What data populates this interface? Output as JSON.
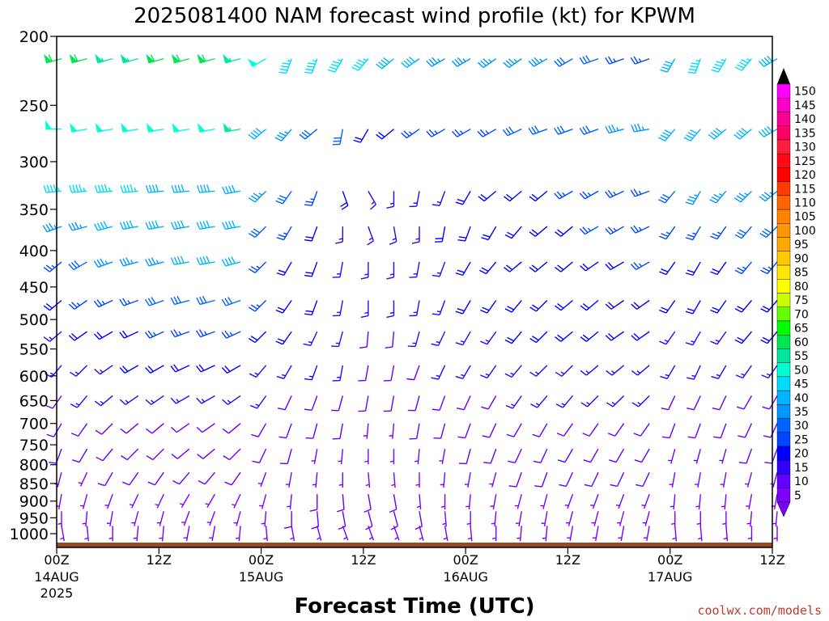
{
  "chart_data": {
    "type": "wind-barb profile",
    "title": "2025081400 NAM forecast wind profile (kt) for KPWM",
    "xlabel": "Forecast Time (UTC)",
    "credit": "coolwx.com/models",
    "x_ticks": [
      {
        "hour": 0,
        "label": "00Z",
        "date": "14AUG",
        "year": "2025"
      },
      {
        "hour": 12,
        "label": "12Z",
        "date": "",
        "year": ""
      },
      {
        "hour": 24,
        "label": "00Z",
        "date": "15AUG",
        "year": ""
      },
      {
        "hour": 36,
        "label": "12Z",
        "date": "",
        "year": ""
      },
      {
        "hour": 48,
        "label": "00Z",
        "date": "16AUG",
        "year": ""
      },
      {
        "hour": 60,
        "label": "12Z",
        "date": "",
        "year": ""
      },
      {
        "hour": 72,
        "label": "00Z",
        "date": "17AUG",
        "year": ""
      },
      {
        "hour": 84,
        "label": "12Z",
        "date": "",
        "year": ""
      }
    ],
    "xlim": [
      0,
      84
    ],
    "ylabel": "",
    "y_ticks": [
      200,
      250,
      300,
      350,
      400,
      450,
      500,
      550,
      600,
      650,
      700,
      750,
      800,
      850,
      900,
      950,
      1000
    ],
    "ylim": [
      200,
      1000
    ],
    "y_scale": "log-pressure (inverted)",
    "colorbar": {
      "labels": [
        "150",
        "145",
        "140",
        "135",
        "130",
        "125",
        "120",
        "115",
        "110",
        "105",
        "100",
        "95",
        "90",
        "85",
        "80",
        "75",
        "70",
        "65",
        "60",
        "55",
        "50",
        "45",
        "40",
        "35",
        "30",
        "25",
        "20",
        "15",
        "10",
        "5"
      ],
      "colors": [
        "#ff00ff",
        "#ff00c8",
        "#ff0096",
        "#ff0064",
        "#ff1e3c",
        "#ff0a14",
        "#ff0000",
        "#ff3c00",
        "#ff6400",
        "#ff8200",
        "#ff9600",
        "#ffaa00",
        "#ffc800",
        "#ffe600",
        "#ffff00",
        "#c8ff00",
        "#64ff00",
        "#00ff00",
        "#00e650",
        "#00e6a0",
        "#00ffd2",
        "#00dcff",
        "#00b4ff",
        "#0096ff",
        "#0064ff",
        "#0046ff",
        "#0000ff",
        "#3200ff",
        "#6400ff",
        "#7d00ff"
      ]
    },
    "surface_color": "#9a4a23",
    "surface_pressure_hPa": [
      1015,
      1016,
      1017,
      1018,
      1018,
      1019,
      1019,
      1020,
      1020,
      1020,
      1020,
      1020
    ],
    "hours": [
      0,
      3,
      6,
      9,
      12,
      15,
      18,
      21,
      24,
      27,
      30,
      33,
      36,
      39,
      42,
      45,
      48,
      51,
      54,
      57,
      60,
      63,
      66,
      69,
      72,
      75,
      78,
      81,
      84
    ],
    "series": [
      {
        "level": 215,
        "direction_deg": [
          255,
          255,
          255,
          255,
          255,
          255,
          255,
          255,
          240,
          200,
          200,
          210,
          220,
          230,
          235,
          240,
          240,
          235,
          235,
          240,
          240,
          250,
          250,
          250,
          210,
          200,
          210,
          220,
          240
        ],
        "speed_kt": [
          60,
          60,
          55,
          55,
          60,
          60,
          60,
          55,
          50,
          45,
          45,
          45,
          45,
          40,
          40,
          35,
          35,
          35,
          35,
          35,
          30,
          30,
          25,
          25,
          40,
          45,
          45,
          45,
          40
        ]
      },
      {
        "level": 270,
        "direction_deg": [
          270,
          260,
          260,
          260,
          260,
          260,
          260,
          260,
          230,
          220,
          230,
          190,
          210,
          230,
          235,
          240,
          240,
          240,
          245,
          250,
          250,
          250,
          255,
          260,
          220,
          220,
          230,
          230,
          240
        ],
        "speed_kt": [
          50,
          50,
          50,
          50,
          50,
          50,
          50,
          55,
          40,
          35,
          30,
          30,
          20,
          20,
          25,
          25,
          25,
          25,
          30,
          30,
          30,
          30,
          35,
          35,
          40,
          40,
          40,
          40,
          40
        ]
      },
      {
        "level": 330,
        "direction_deg": [
          265,
          265,
          265,
          265,
          265,
          265,
          265,
          260,
          225,
          215,
          200,
          160,
          150,
          180,
          190,
          200,
          210,
          230,
          230,
          230,
          240,
          240,
          245,
          250,
          220,
          210,
          220,
          225,
          230
        ],
        "speed_kt": [
          45,
          45,
          45,
          45,
          40,
          40,
          40,
          40,
          35,
          30,
          25,
          20,
          15,
          15,
          15,
          15,
          20,
          20,
          20,
          20,
          25,
          25,
          25,
          25,
          30,
          35,
          35,
          35,
          35
        ]
      },
      {
        "level": 370,
        "direction_deg": [
          250,
          255,
          255,
          260,
          260,
          260,
          260,
          260,
          225,
          210,
          200,
          180,
          160,
          170,
          180,
          190,
          200,
          210,
          220,
          230,
          230,
          240,
          240,
          245,
          215,
          210,
          215,
          220,
          225
        ],
        "speed_kt": [
          35,
          35,
          40,
          40,
          40,
          40,
          40,
          40,
          30,
          25,
          20,
          15,
          15,
          15,
          15,
          20,
          20,
          20,
          20,
          20,
          20,
          25,
          25,
          25,
          25,
          25,
          25,
          30,
          30
        ]
      },
      {
        "level": 415,
        "direction_deg": [
          230,
          240,
          250,
          255,
          255,
          260,
          260,
          255,
          225,
          210,
          200,
          190,
          180,
          180,
          190,
          200,
          210,
          220,
          230,
          230,
          230,
          235,
          240,
          240,
          215,
          210,
          215,
          220,
          220
        ],
        "speed_kt": [
          25,
          30,
          35,
          35,
          35,
          40,
          40,
          40,
          25,
          20,
          20,
          15,
          15,
          15,
          15,
          15,
          20,
          20,
          20,
          20,
          20,
          20,
          20,
          25,
          20,
          20,
          20,
          25,
          25
        ]
      },
      {
        "level": 470,
        "direction_deg": [
          230,
          235,
          245,
          250,
          250,
          255,
          255,
          250,
          225,
          215,
          200,
          190,
          180,
          180,
          190,
          200,
          210,
          215,
          220,
          225,
          230,
          230,
          235,
          235,
          215,
          210,
          215,
          220,
          220
        ],
        "speed_kt": [
          20,
          25,
          25,
          25,
          30,
          30,
          30,
          30,
          25,
          20,
          20,
          15,
          15,
          15,
          15,
          15,
          20,
          20,
          20,
          20,
          20,
          20,
          20,
          20,
          20,
          20,
          20,
          20,
          20
        ]
      },
      {
        "level": 520,
        "direction_deg": [
          230,
          235,
          240,
          245,
          245,
          250,
          250,
          245,
          225,
          215,
          205,
          195,
          185,
          185,
          195,
          205,
          210,
          215,
          220,
          225,
          230,
          230,
          235,
          235,
          215,
          210,
          215,
          220,
          220
        ],
        "speed_kt": [
          15,
          20,
          20,
          20,
          25,
          25,
          25,
          25,
          20,
          20,
          15,
          15,
          10,
          10,
          15,
          15,
          15,
          15,
          20,
          20,
          20,
          20,
          20,
          20,
          15,
          15,
          15,
          20,
          20
        ]
      },
      {
        "level": 580,
        "direction_deg": [
          220,
          225,
          235,
          240,
          240,
          245,
          245,
          240,
          220,
          210,
          200,
          190,
          190,
          190,
          200,
          205,
          210,
          215,
          220,
          225,
          225,
          230,
          230,
          230,
          210,
          205,
          210,
          215,
          215
        ],
        "speed_kt": [
          15,
          15,
          15,
          20,
          20,
          20,
          20,
          20,
          15,
          15,
          15,
          15,
          10,
          10,
          10,
          15,
          15,
          15,
          15,
          15,
          15,
          15,
          15,
          15,
          15,
          15,
          15,
          15,
          15
        ]
      },
      {
        "level": 640,
        "direction_deg": [
          215,
          220,
          230,
          235,
          235,
          240,
          240,
          235,
          215,
          205,
          200,
          195,
          190,
          190,
          195,
          200,
          205,
          210,
          215,
          220,
          220,
          225,
          225,
          225,
          205,
          205,
          205,
          210,
          210
        ],
        "speed_kt": [
          10,
          15,
          15,
          15,
          15,
          15,
          15,
          15,
          15,
          10,
          10,
          10,
          10,
          10,
          10,
          10,
          10,
          10,
          15,
          15,
          15,
          15,
          15,
          15,
          10,
          10,
          10,
          10,
          10
        ]
      },
      {
        "level": 700,
        "direction_deg": [
          210,
          215,
          225,
          230,
          230,
          235,
          235,
          230,
          210,
          200,
          195,
          190,
          185,
          185,
          190,
          195,
          200,
          205,
          210,
          210,
          215,
          215,
          215,
          215,
          200,
          200,
          200,
          205,
          205
        ],
        "speed_kt": [
          10,
          10,
          10,
          10,
          10,
          10,
          10,
          10,
          10,
          10,
          10,
          10,
          5,
          5,
          10,
          10,
          10,
          10,
          10,
          10,
          10,
          10,
          10,
          10,
          10,
          10,
          10,
          10,
          10
        ]
      },
      {
        "level": 760,
        "direction_deg": [
          200,
          210,
          220,
          225,
          225,
          230,
          230,
          225,
          205,
          195,
          190,
          185,
          180,
          180,
          185,
          190,
          195,
          200,
          205,
          205,
          210,
          210,
          210,
          210,
          195,
          195,
          195,
          200,
          200
        ],
        "speed_kt": [
          10,
          10,
          10,
          10,
          10,
          10,
          10,
          10,
          10,
          10,
          5,
          5,
          5,
          5,
          5,
          5,
          10,
          10,
          10,
          10,
          10,
          10,
          10,
          10,
          5,
          5,
          5,
          10,
          10
        ]
      },
      {
        "level": 820,
        "direction_deg": [
          195,
          205,
          210,
          215,
          215,
          220,
          220,
          215,
          200,
          190,
          185,
          180,
          175,
          175,
          180,
          185,
          190,
          195,
          200,
          200,
          205,
          205,
          205,
          205,
          190,
          190,
          190,
          195,
          195
        ],
        "speed_kt": [
          5,
          5,
          10,
          10,
          10,
          10,
          10,
          10,
          5,
          5,
          5,
          5,
          5,
          5,
          5,
          5,
          5,
          5,
          10,
          10,
          10,
          10,
          10,
          10,
          5,
          5,
          5,
          5,
          5
        ]
      },
      {
        "level": 880,
        "direction_deg": [
          190,
          195,
          200,
          205,
          205,
          210,
          210,
          205,
          195,
          185,
          180,
          175,
          170,
          170,
          175,
          180,
          185,
          190,
          195,
          195,
          200,
          200,
          200,
          200,
          185,
          185,
          185,
          190,
          190
        ],
        "speed_kt": [
          5,
          5,
          5,
          5,
          5,
          5,
          5,
          5,
          5,
          5,
          10,
          10,
          10,
          10,
          5,
          5,
          5,
          5,
          5,
          5,
          5,
          5,
          5,
          5,
          5,
          5,
          5,
          5,
          5
        ]
      },
      {
        "level": 930,
        "direction_deg": [
          180,
          185,
          190,
          195,
          195,
          200,
          200,
          195,
          185,
          180,
          175,
          170,
          165,
          165,
          170,
          175,
          180,
          185,
          190,
          190,
          195,
          195,
          195,
          195,
          180,
          180,
          180,
          185,
          185
        ],
        "speed_kt": [
          5,
          5,
          5,
          5,
          5,
          5,
          5,
          5,
          5,
          10,
          10,
          10,
          10,
          10,
          10,
          5,
          5,
          5,
          5,
          5,
          5,
          5,
          5,
          5,
          5,
          5,
          5,
          5,
          5
        ]
      },
      {
        "level": 975,
        "direction_deg": [
          170,
          175,
          180,
          185,
          185,
          190,
          190,
          185,
          175,
          170,
          165,
          160,
          160,
          160,
          165,
          170,
          175,
          180,
          185,
          185,
          190,
          190,
          190,
          190,
          175,
          175,
          175,
          180,
          180
        ],
        "speed_kt": [
          5,
          5,
          5,
          5,
          5,
          5,
          5,
          5,
          5,
          5,
          5,
          5,
          5,
          5,
          5,
          5,
          5,
          5,
          5,
          5,
          5,
          5,
          5,
          5,
          5,
          5,
          5,
          5,
          5
        ]
      }
    ]
  }
}
